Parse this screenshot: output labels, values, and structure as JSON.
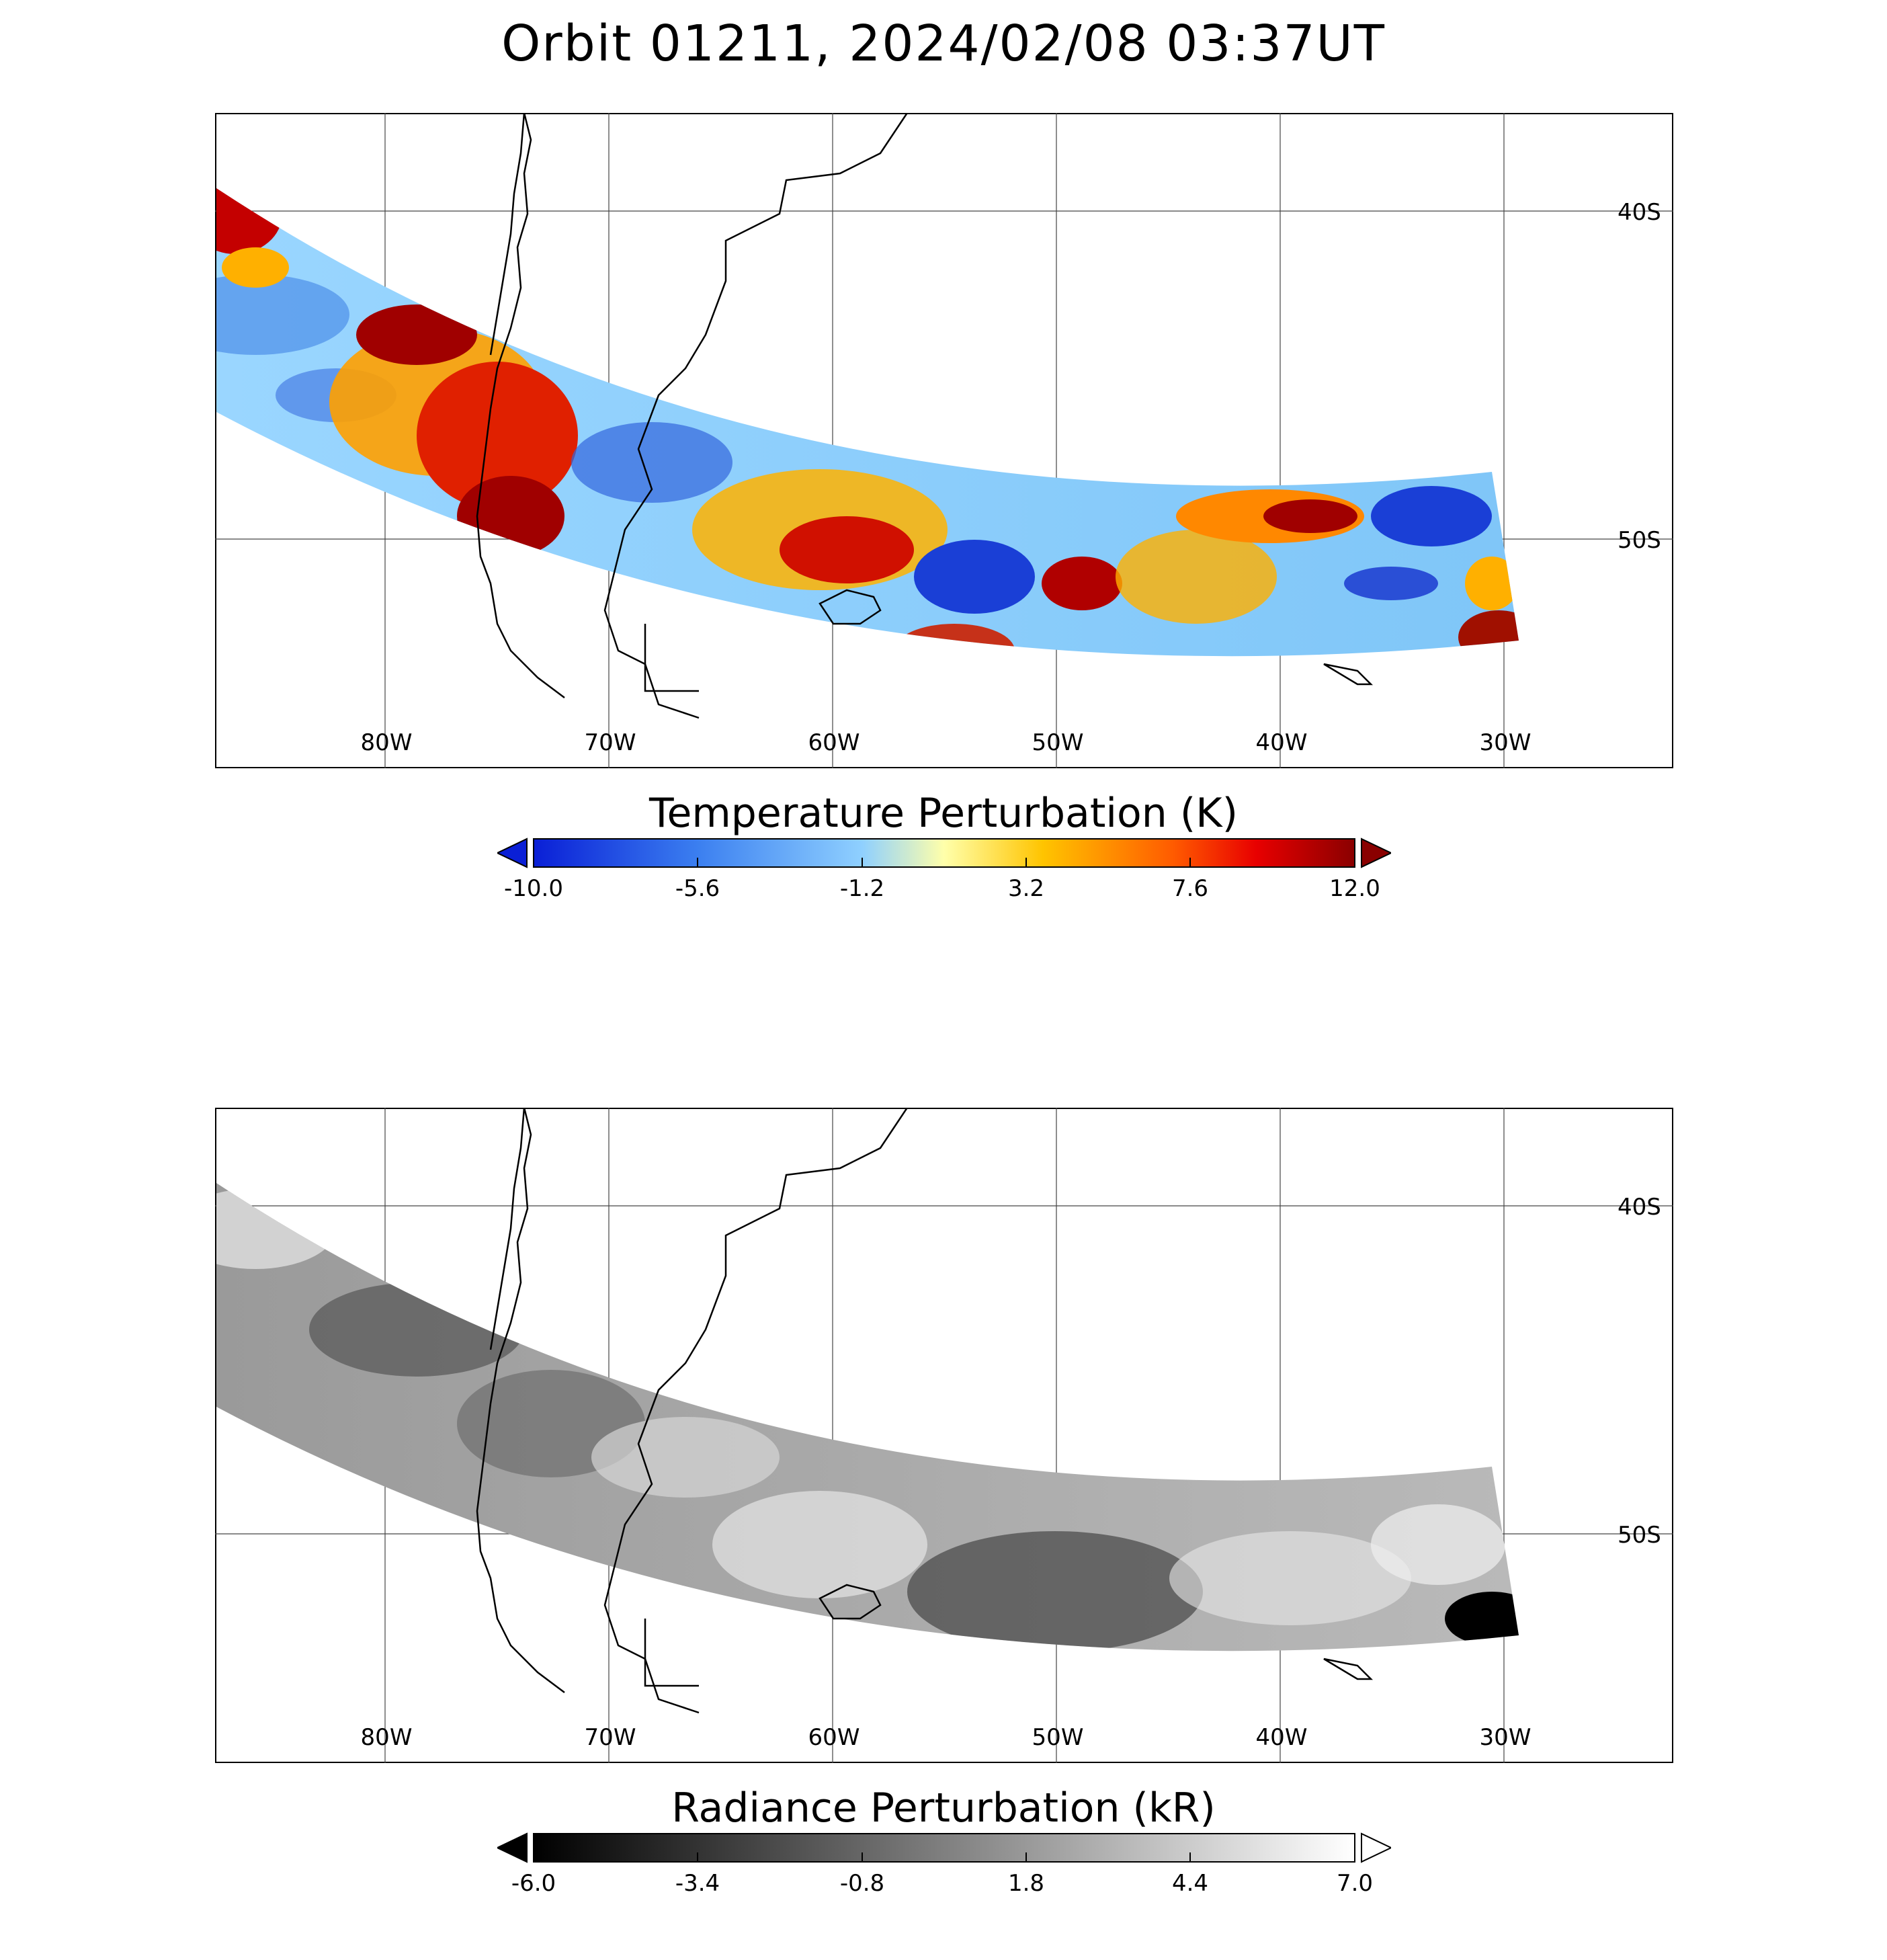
{
  "title": "Orbit 01211, 2024/02/08 03:37UT",
  "panels": [
    {
      "lon_labels": [
        "80W",
        "70W",
        "60W",
        "50W",
        "40W",
        "30W"
      ],
      "lat_labels": [
        "40S",
        "50S"
      ],
      "colorbar": {
        "title": "Temperature Perturbation (K)",
        "ticks": [
          "-10.0",
          "-5.6",
          "-1.2",
          "3.2",
          "7.6",
          "12.0"
        ],
        "colors": [
          "#0a1fd6",
          "#3b7ff0",
          "#8fd0ff",
          "#ffffaa",
          "#ffc400",
          "#ff5a00",
          "#e80000",
          "#8a0000"
        ]
      }
    },
    {
      "lon_labels": [
        "80W",
        "70W",
        "60W",
        "50W",
        "40W",
        "30W"
      ],
      "lat_labels": [
        "40S",
        "50S"
      ],
      "colorbar": {
        "title": "Radiance Perturbation (kR)",
        "ticks": [
          "-6.0",
          "-3.4",
          "-0.8",
          "1.8",
          "4.4",
          "7.0"
        ],
        "colors": [
          "#000000",
          "#ffffff"
        ]
      }
    }
  ]
}
